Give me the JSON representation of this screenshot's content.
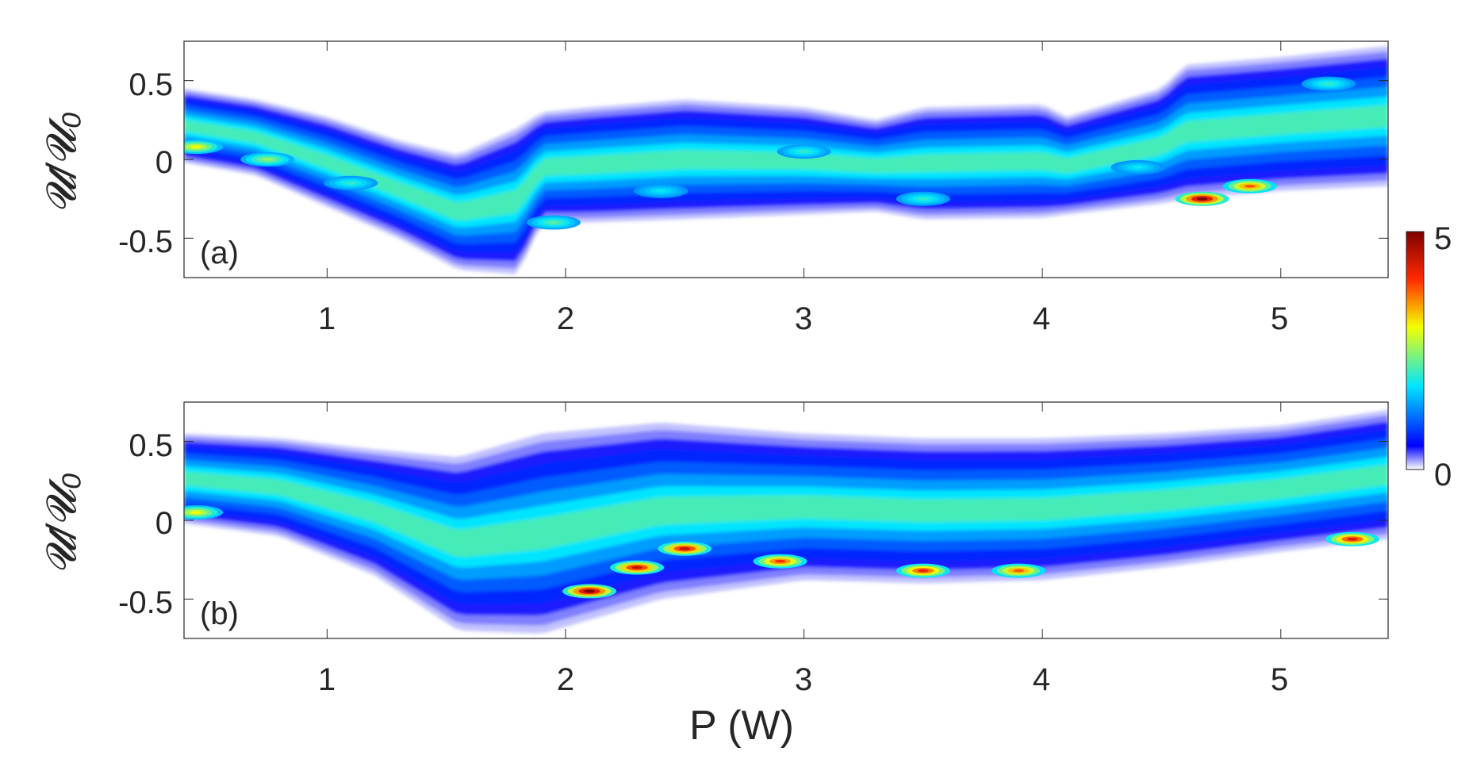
{
  "figure": {
    "xlabel": "P (W)",
    "ylabel": "𝓤/𝓤₀",
    "colorbar": {
      "min": 0,
      "max": 5,
      "tick_labels": [
        "5",
        "0"
      ],
      "colormap": "jet (white at 0)"
    }
  },
  "chart_data": [
    {
      "type": "heatmap",
      "panel_label": "(a)",
      "xlabel": "",
      "ylabel": "𝓤/𝓤₀",
      "xlim": [
        0.4,
        5.45
      ],
      "ylim": [
        -0.75,
        0.75
      ],
      "xticks": [
        1,
        2,
        3,
        4,
        5
      ],
      "xtick_labels": [
        "1",
        "2",
        "3",
        "4",
        "5"
      ],
      "yticks": [
        0.5,
        0,
        -0.5
      ],
      "ytick_labels": [
        "0.5",
        "0",
        "-0.5"
      ],
      "grid": false,
      "envelope": {
        "x": [
          0.4,
          0.7,
          1.0,
          1.3,
          1.55,
          1.8,
          1.9,
          2.1,
          2.5,
          3.0,
          3.3,
          3.5,
          4.0,
          4.1,
          4.5,
          4.6,
          5.0,
          5.45
        ],
        "upper": [
          0.45,
          0.38,
          0.27,
          0.12,
          0.03,
          0.2,
          0.3,
          0.33,
          0.38,
          0.33,
          0.25,
          0.33,
          0.35,
          0.27,
          0.45,
          0.6,
          0.65,
          0.72
        ],
        "lower": [
          -0.02,
          -0.1,
          -0.3,
          -0.5,
          -0.7,
          -0.73,
          -0.4,
          -0.4,
          -0.38,
          -0.35,
          -0.33,
          -0.38,
          -0.37,
          -0.35,
          -0.28,
          -0.25,
          -0.2,
          -0.17
        ]
      },
      "hotspots": [
        {
          "x": 0.45,
          "y": 0.08,
          "value": 3.0
        },
        {
          "x": 0.75,
          "y": 0.0,
          "value": 2.5
        },
        {
          "x": 1.1,
          "y": -0.15,
          "value": 2.0
        },
        {
          "x": 1.95,
          "y": -0.4,
          "value": 2.2
        },
        {
          "x": 2.4,
          "y": -0.2,
          "value": 1.8
        },
        {
          "x": 3.0,
          "y": 0.05,
          "value": 2.0
        },
        {
          "x": 3.5,
          "y": -0.25,
          "value": 2.0
        },
        {
          "x": 4.4,
          "y": -0.05,
          "value": 1.8
        },
        {
          "x": 4.67,
          "y": -0.25,
          "value": 5.0
        },
        {
          "x": 4.87,
          "y": -0.17,
          "value": 3.8
        },
        {
          "x": 5.2,
          "y": 0.48,
          "value": 2.0
        }
      ]
    },
    {
      "type": "heatmap",
      "panel_label": "(b)",
      "xlabel": "P (W)",
      "ylabel": "𝓤/𝓤₀",
      "xlim": [
        0.4,
        5.45
      ],
      "ylim": [
        -0.75,
        0.75
      ],
      "xticks": [
        1,
        2,
        3,
        4,
        5
      ],
      "xtick_labels": [
        "1",
        "2",
        "3",
        "4",
        "5"
      ],
      "yticks": [
        0.5,
        0,
        -0.5
      ],
      "ytick_labels": [
        "0.5",
        "0",
        "-0.5"
      ],
      "grid": false,
      "envelope": {
        "x": [
          0.4,
          0.8,
          1.2,
          1.55,
          1.9,
          2.4,
          3.0,
          3.5,
          4.0,
          4.5,
          5.0,
          5.45
        ],
        "upper": [
          0.55,
          0.52,
          0.45,
          0.4,
          0.55,
          0.62,
          0.55,
          0.52,
          0.52,
          0.55,
          0.6,
          0.7
        ],
        "lower": [
          -0.02,
          -0.1,
          -0.35,
          -0.7,
          -0.72,
          -0.5,
          -0.38,
          -0.4,
          -0.38,
          -0.3,
          -0.2,
          -0.12
        ]
      },
      "hotspots": [
        {
          "x": 0.45,
          "y": 0.05,
          "value": 3.0
        },
        {
          "x": 2.1,
          "y": -0.45,
          "value": 5.0
        },
        {
          "x": 2.3,
          "y": -0.3,
          "value": 4.5
        },
        {
          "x": 2.5,
          "y": -0.18,
          "value": 4.5
        },
        {
          "x": 2.9,
          "y": -0.26,
          "value": 4.0
        },
        {
          "x": 3.5,
          "y": -0.32,
          "value": 4.2
        },
        {
          "x": 3.9,
          "y": -0.32,
          "value": 3.8
        },
        {
          "x": 5.3,
          "y": -0.12,
          "value": 4.3
        }
      ]
    }
  ]
}
